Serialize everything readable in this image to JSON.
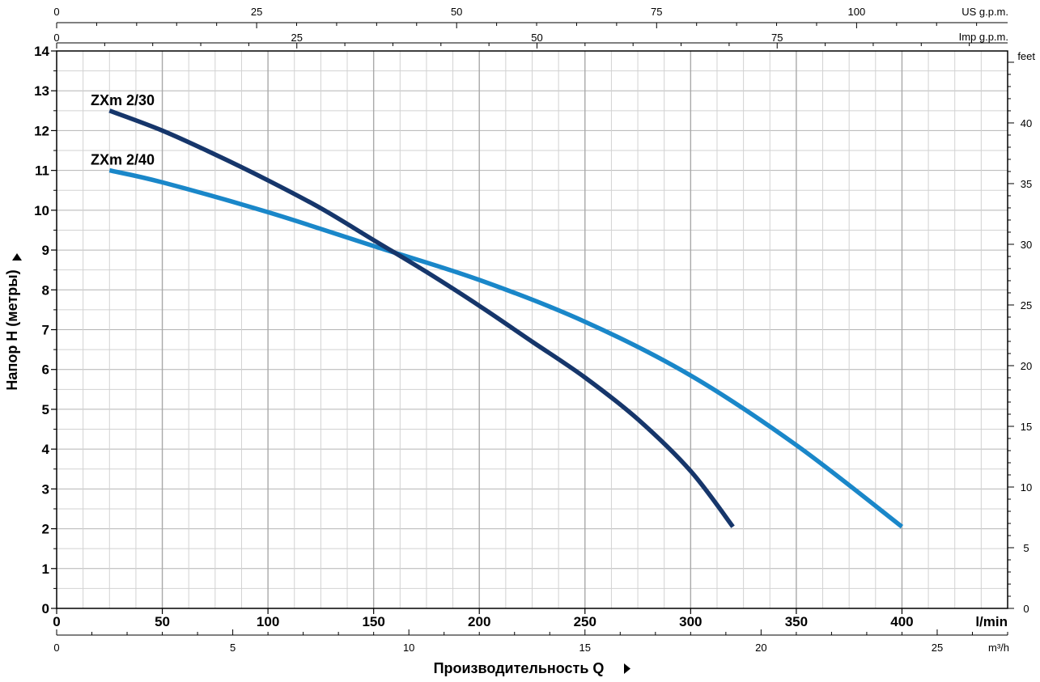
{
  "chart_data": {
    "type": "line",
    "title": "",
    "xlabel": "Производительность Q",
    "ylabel": "Напор H (метры)",
    "x_unit": "l/min",
    "xlim": [
      0,
      450
    ],
    "ylim": [
      0,
      14
    ],
    "x_ticks": [
      "0",
      "50",
      "100",
      "150",
      "200",
      "250",
      "300",
      "350",
      "400"
    ],
    "y_ticks": [
      "0",
      "1",
      "2",
      "3",
      "4",
      "5",
      "6",
      "7",
      "8",
      "9",
      "10",
      "11",
      "12",
      "13",
      "14"
    ],
    "grid": true,
    "series": [
      {
        "name": "ZXm 2/30",
        "color": "#16366b",
        "x": [
          25,
          50,
          75,
          100,
          125,
          150,
          175,
          200,
          225,
          250,
          275,
          300,
          320
        ],
        "y": [
          12.5,
          12.0,
          11.4,
          10.75,
          10.05,
          9.25,
          8.45,
          7.6,
          6.7,
          5.8,
          4.75,
          3.45,
          2.05
        ]
      },
      {
        "name": "ZXm 2/40",
        "color": "#1a87c9",
        "x": [
          25,
          50,
          100,
          150,
          200,
          250,
          300,
          350,
          400
        ],
        "y": [
          11.0,
          10.7,
          9.95,
          9.1,
          8.25,
          7.2,
          5.85,
          4.1,
          2.05
        ]
      }
    ],
    "secondary_axes": {
      "us_gpm": {
        "label": "US g.p.m.",
        "ticks": [
          "0",
          "25",
          "50",
          "75",
          "100"
        ],
        "max": 118.88
      },
      "imp_gpm": {
        "label": "Imp g.p.m.",
        "ticks": [
          "0",
          "25",
          "50",
          "75"
        ],
        "max": 98.99
      },
      "m3h": {
        "label": "m³/h",
        "ticks": [
          "0",
          "5",
          "10",
          "15",
          "20",
          "25"
        ],
        "max": 27
      },
      "feet": {
        "label": "feet",
        "ticks": [
          "0",
          "5",
          "10",
          "15",
          "20",
          "25",
          "30",
          "35",
          "40"
        ],
        "max": 45.93
      }
    }
  }
}
